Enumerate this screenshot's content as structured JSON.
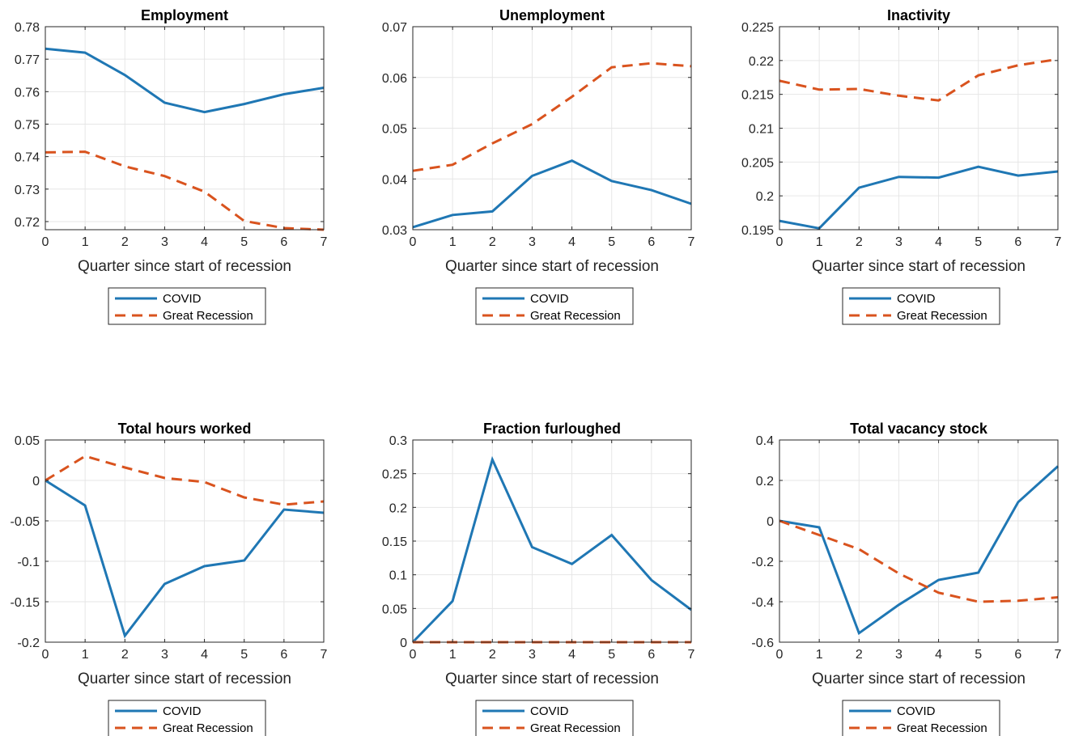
{
  "figure": {
    "xlabel": "Quarter since start of recession",
    "legend_entries": [
      "COVID",
      "Great Recession"
    ],
    "colors": {
      "covid": "#1f77b4",
      "great_recession": "#d9531e"
    }
  },
  "chart_data": [
    {
      "type": "line",
      "title": "Employment",
      "xlabel": "Quarter since start of recession",
      "ylabel": "",
      "x": [
        0,
        1,
        2,
        3,
        4,
        5,
        6,
        7
      ],
      "xlim": [
        0,
        7
      ],
      "ylim": [
        0.7175,
        0.78
      ],
      "yticks": [
        0.72,
        0.73,
        0.74,
        0.75,
        0.76,
        0.77,
        0.78
      ],
      "ytick_labels": [
        "0.72",
        "0.73",
        "0.74",
        "0.75",
        "0.76",
        "0.77",
        "0.78"
      ],
      "grid": true,
      "legend": "below",
      "series": [
        {
          "name": "COVID",
          "style": "solid",
          "values": [
            0.7732,
            0.772,
            0.7651,
            0.7566,
            0.7537,
            0.7562,
            0.7592,
            0.7612
          ]
        },
        {
          "name": "Great Recession",
          "style": "dashed",
          "values": [
            0.7413,
            0.7415,
            0.737,
            0.734,
            0.7292,
            0.7202,
            0.718,
            0.7175
          ]
        }
      ]
    },
    {
      "type": "line",
      "title": "Unemployment",
      "xlabel": "Quarter since start of recession",
      "ylabel": "",
      "x": [
        0,
        1,
        2,
        3,
        4,
        5,
        6,
        7
      ],
      "xlim": [
        0,
        7
      ],
      "ylim": [
        0.03,
        0.07
      ],
      "yticks": [
        0.03,
        0.04,
        0.05,
        0.06,
        0.07
      ],
      "ytick_labels": [
        "0.03",
        "0.04",
        "0.05",
        "0.06",
        "0.07"
      ],
      "grid": true,
      "legend": "below",
      "series": [
        {
          "name": "COVID",
          "style": "solid",
          "values": [
            0.0305,
            0.0329,
            0.0336,
            0.0406,
            0.0436,
            0.0396,
            0.0378,
            0.0351
          ]
        },
        {
          "name": "Great Recession",
          "style": "dashed",
          "values": [
            0.0416,
            0.0428,
            0.047,
            0.0508,
            0.0562,
            0.062,
            0.0628,
            0.0622
          ]
        }
      ]
    },
    {
      "type": "line",
      "title": "Inactivity",
      "xlabel": "Quarter since start of recession",
      "ylabel": "",
      "x": [
        0,
        1,
        2,
        3,
        4,
        5,
        6,
        7
      ],
      "xlim": [
        0,
        7
      ],
      "ylim": [
        0.195,
        0.225
      ],
      "yticks": [
        0.195,
        0.2,
        0.205,
        0.21,
        0.215,
        0.22,
        0.225
      ],
      "ytick_labels": [
        "0.195",
        "0.2",
        "0.205",
        "0.21",
        "0.215",
        "0.22",
        "0.225"
      ],
      "grid": true,
      "legend": "below",
      "series": [
        {
          "name": "COVID",
          "style": "solid",
          "values": [
            0.1963,
            0.1952,
            0.2012,
            0.2028,
            0.2027,
            0.2043,
            0.203,
            0.2036
          ]
        },
        {
          "name": "Great Recession",
          "style": "dashed",
          "values": [
            0.217,
            0.2157,
            0.2158,
            0.2148,
            0.2141,
            0.2178,
            0.2193,
            0.2202
          ]
        }
      ]
    },
    {
      "type": "line",
      "title": "Total hours worked",
      "xlabel": "Quarter since start of recession",
      "ylabel": "",
      "x": [
        0,
        1,
        2,
        3,
        4,
        5,
        6,
        7
      ],
      "xlim": [
        0,
        7
      ],
      "ylim": [
        -0.2,
        0.05
      ],
      "yticks": [
        -0.2,
        -0.15,
        -0.1,
        -0.05,
        0,
        0.05
      ],
      "ytick_labels": [
        "-0.2",
        "-0.15",
        "-0.1",
        "-0.05",
        "0",
        "0.05"
      ],
      "grid": true,
      "legend": "below",
      "series": [
        {
          "name": "COVID",
          "style": "solid",
          "values": [
            0,
            -0.031,
            -0.192,
            -0.128,
            -0.106,
            -0.099,
            -0.036,
            -0.04
          ]
        },
        {
          "name": "Great Recession",
          "style": "dashed",
          "values": [
            0,
            0.03,
            0.016,
            0.003,
            -0.002,
            -0.021,
            -0.03,
            -0.026
          ]
        }
      ]
    },
    {
      "type": "line",
      "title": "Fraction furloughed",
      "xlabel": "Quarter since start of recession",
      "ylabel": "",
      "x": [
        0,
        1,
        2,
        3,
        4,
        5,
        6,
        7
      ],
      "xlim": [
        0,
        7
      ],
      "ylim": [
        0,
        0.3
      ],
      "yticks": [
        0,
        0.05,
        0.1,
        0.15,
        0.2,
        0.25,
        0.3
      ],
      "ytick_labels": [
        "0",
        "0.05",
        "0.1",
        "0.15",
        "0.2",
        "0.25",
        "0.3"
      ],
      "grid": true,
      "legend": "below",
      "series": [
        {
          "name": "COVID",
          "style": "solid",
          "values": [
            0,
            0.061,
            0.271,
            0.141,
            0.116,
            0.159,
            0.092,
            0.048
          ]
        },
        {
          "name": "Great Recession",
          "style": "dashed",
          "values": [
            0,
            0,
            0,
            0,
            0,
            0,
            0,
            0
          ]
        }
      ]
    },
    {
      "type": "line",
      "title": "Total vacancy stock",
      "xlabel": "Quarter since start of recession",
      "ylabel": "",
      "x": [
        0,
        1,
        2,
        3,
        4,
        5,
        6,
        7
      ],
      "xlim": [
        0,
        7
      ],
      "ylim": [
        -0.6,
        0.4
      ],
      "yticks": [
        -0.6,
        -0.4,
        -0.2,
        0,
        0.2,
        0.4
      ],
      "ytick_labels": [
        "-0.6",
        "-0.4",
        "-0.2",
        "0",
        "0.2",
        "0.4"
      ],
      "grid": true,
      "legend": "below",
      "series": [
        {
          "name": "COVID",
          "style": "solid",
          "values": [
            0,
            -0.032,
            -0.555,
            -0.415,
            -0.292,
            -0.256,
            0.093,
            0.27
          ]
        },
        {
          "name": "Great Recession",
          "style": "dashed",
          "values": [
            0,
            -0.07,
            -0.14,
            -0.26,
            -0.355,
            -0.4,
            -0.395,
            -0.378
          ]
        }
      ]
    }
  ]
}
